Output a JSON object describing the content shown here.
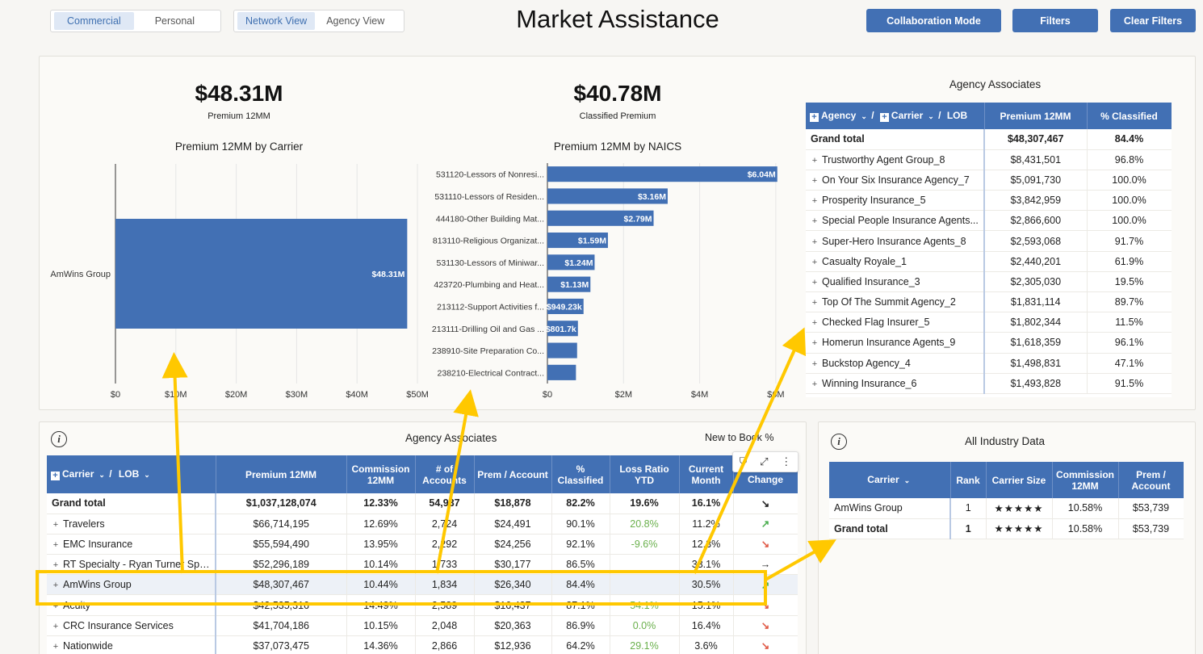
{
  "header": {
    "title": "Market Assistance",
    "line_toggle": [
      "Commercial",
      "Personal"
    ],
    "view_toggle": [
      "Network View",
      "Agency View"
    ],
    "buttons": [
      "Collaboration Mode",
      "Filters",
      "Clear Filters"
    ]
  },
  "kpis": [
    {
      "value": "$48.31M",
      "label": "Premium 12MM"
    },
    {
      "value": "$40.78M",
      "label": "Classified Premium"
    }
  ],
  "colors": {
    "accent": "#4270b4",
    "highlight": "#ffc800"
  },
  "chart_data": [
    {
      "type": "bar",
      "orientation": "horizontal",
      "title": "Premium 12MM by Carrier",
      "categories": [
        "AmWins Group"
      ],
      "values": [
        48.31
      ],
      "data_labels": [
        "$48.31M"
      ],
      "xlim": [
        0,
        50
      ],
      "ticks": [
        0,
        10,
        20,
        30,
        40,
        50
      ],
      "tick_labels": [
        "$0",
        "$10M",
        "$20M",
        "$30M",
        "$40M",
        "$50M"
      ]
    },
    {
      "type": "bar",
      "orientation": "horizontal",
      "title": "Premium 12MM by NAICS",
      "categories": [
        "531120-Lessors of Nonresi...",
        "531110-Lessors of Residen...",
        "444180-Other Building Mat...",
        "813110-Religious Organizat...",
        "531130-Lessors of Miniwar...",
        "423720-Plumbing and Heat...",
        "213112-Support Activities f...",
        "213111-Drilling Oil and Gas ...",
        "238910-Site Preparation Co...",
        "238210-Electrical Contract..."
      ],
      "values": [
        6.04,
        3.16,
        2.79,
        1.59,
        1.24,
        1.13,
        0.94923,
        0.8017,
        0.78,
        0.75
      ],
      "data_labels": [
        "$6.04M",
        "$3.16M",
        "$2.79M",
        "$1.59M",
        "$1.24M",
        "$1.13M",
        "$949.23k",
        "$801.7k",
        "",
        ""
      ],
      "xlim": [
        0,
        6.3
      ],
      "ticks": [
        0,
        2,
        4,
        6
      ],
      "tick_labels": [
        "$0",
        "$2M",
        "$4M",
        "$6M"
      ]
    }
  ],
  "agency_table": {
    "title": "Agency Associates",
    "headers": {
      "agency": "Agency",
      "carrier": "Carrier",
      "lob": "LOB",
      "premium": "Premium 12MM",
      "classified": "% Classified"
    },
    "grand": {
      "label": "Grand total",
      "premium": "$48,307,467",
      "classified": "84.4%"
    },
    "rows": [
      {
        "label": "Trustworthy Agent Group_8",
        "premium": "$8,431,501",
        "classified": "96.8%"
      },
      {
        "label": "On Your Six Insurance Agency_7",
        "premium": "$5,091,730",
        "classified": "100.0%"
      },
      {
        "label": "Prosperity Insurance_5",
        "premium": "$3,842,959",
        "classified": "100.0%"
      },
      {
        "label": "Special People Insurance Agents...",
        "premium": "$2,866,600",
        "classified": "100.0%"
      },
      {
        "label": "Super-Hero Insurance Agents_8",
        "premium": "$2,593,068",
        "classified": "91.7%"
      },
      {
        "label": "Casualty Royale_1",
        "premium": "$2,440,201",
        "classified": "61.9%"
      },
      {
        "label": "Qualified Insurance_3",
        "premium": "$2,305,030",
        "classified": "19.5%"
      },
      {
        "label": "Top Of The Summit Agency_2",
        "premium": "$1,831,114",
        "classified": "89.7%"
      },
      {
        "label": "Checked Flag Insurer_5",
        "premium": "$1,802,344",
        "classified": "11.5%"
      },
      {
        "label": "Homerun Insurance Agents_9",
        "premium": "$1,618,359",
        "classified": "96.1%"
      },
      {
        "label": "Buckstop Agency_4",
        "premium": "$1,498,831",
        "classified": "47.1%"
      },
      {
        "label": "Winning Insurance_6",
        "premium": "$1,493,828",
        "classified": "91.5%"
      }
    ]
  },
  "carrier_table": {
    "title": "Agency Associates",
    "new_to_book": "New to Book %",
    "headers": {
      "carrier": "Carrier",
      "lob": "LOB",
      "premium": "Premium 12MM",
      "commission": "Commission 12MM",
      "accounts": "# of Accounts",
      "prem_account": "Prem / Account",
      "classified": "% Classified",
      "loss_ratio": "Loss Ratio YTD",
      "current_month": "Current Month",
      "change": "Change"
    },
    "rows": [
      {
        "label": "Grand total",
        "premium": "$1,037,128,074",
        "commission": "12.33%",
        "accounts": "54,937",
        "prem_account": "$18,878",
        "classified": "82.2%",
        "loss_ratio": "19.6%",
        "current_month": "16.1%",
        "change": "↘",
        "grand": true
      },
      {
        "label": "Travelers",
        "premium": "$66,714,195",
        "commission": "12.69%",
        "accounts": "2,724",
        "prem_account": "$24,491",
        "classified": "90.1%",
        "loss_ratio": "20.8%",
        "current_month": "11.2%",
        "change": "↗"
      },
      {
        "label": "EMC Insurance",
        "premium": "$55,594,490",
        "commission": "13.95%",
        "accounts": "2,292",
        "prem_account": "$24,256",
        "classified": "92.1%",
        "loss_ratio": "-9.6%",
        "current_month": "12.3%",
        "change": "↘"
      },
      {
        "label": "RT Specialty - Ryan Turner Spe...",
        "premium": "$52,296,189",
        "commission": "10.14%",
        "accounts": "1,733",
        "prem_account": "$30,177",
        "classified": "86.5%",
        "loss_ratio": "",
        "current_month": "33.1%",
        "change": "→"
      },
      {
        "label": "AmWins Group",
        "premium": "$48,307,467",
        "commission": "10.44%",
        "accounts": "1,834",
        "prem_account": "$26,340",
        "classified": "84.4%",
        "loss_ratio": "",
        "current_month": "30.5%",
        "change": "↗",
        "hl": true
      },
      {
        "label": "Acuity",
        "premium": "$42,535,316",
        "commission": "14.49%",
        "accounts": "2,589",
        "prem_account": "$16,437",
        "classified": "87.1%",
        "loss_ratio": "54.1%",
        "current_month": "15.1%",
        "change": "↘"
      },
      {
        "label": "CRC Insurance Services",
        "premium": "$41,704,186",
        "commission": "10.15%",
        "accounts": "2,048",
        "prem_account": "$20,363",
        "classified": "86.9%",
        "loss_ratio": "0.0%",
        "current_month": "16.4%",
        "change": "↘"
      },
      {
        "label": "Nationwide",
        "premium": "$37,073,475",
        "commission": "14.36%",
        "accounts": "2,866",
        "prem_account": "$12,936",
        "classified": "64.2%",
        "loss_ratio": "29.1%",
        "current_month": "3.6%",
        "change": "↘"
      }
    ]
  },
  "industry_table": {
    "title": "All Industry Data",
    "headers": {
      "carrier": "Carrier",
      "rank": "Rank",
      "size": "Carrier Size",
      "commission": "Commission 12MM",
      "prem_account": "Prem / Account"
    },
    "rows": [
      {
        "label": "AmWins Group",
        "rank": "1",
        "size": "★★★★★",
        "commission": "10.58%",
        "prem_account": "$53,739"
      },
      {
        "label": "Grand total",
        "rank": "1",
        "size": "★★★★★",
        "commission": "10.58%",
        "prem_account": "$53,739",
        "grand": true
      }
    ]
  }
}
